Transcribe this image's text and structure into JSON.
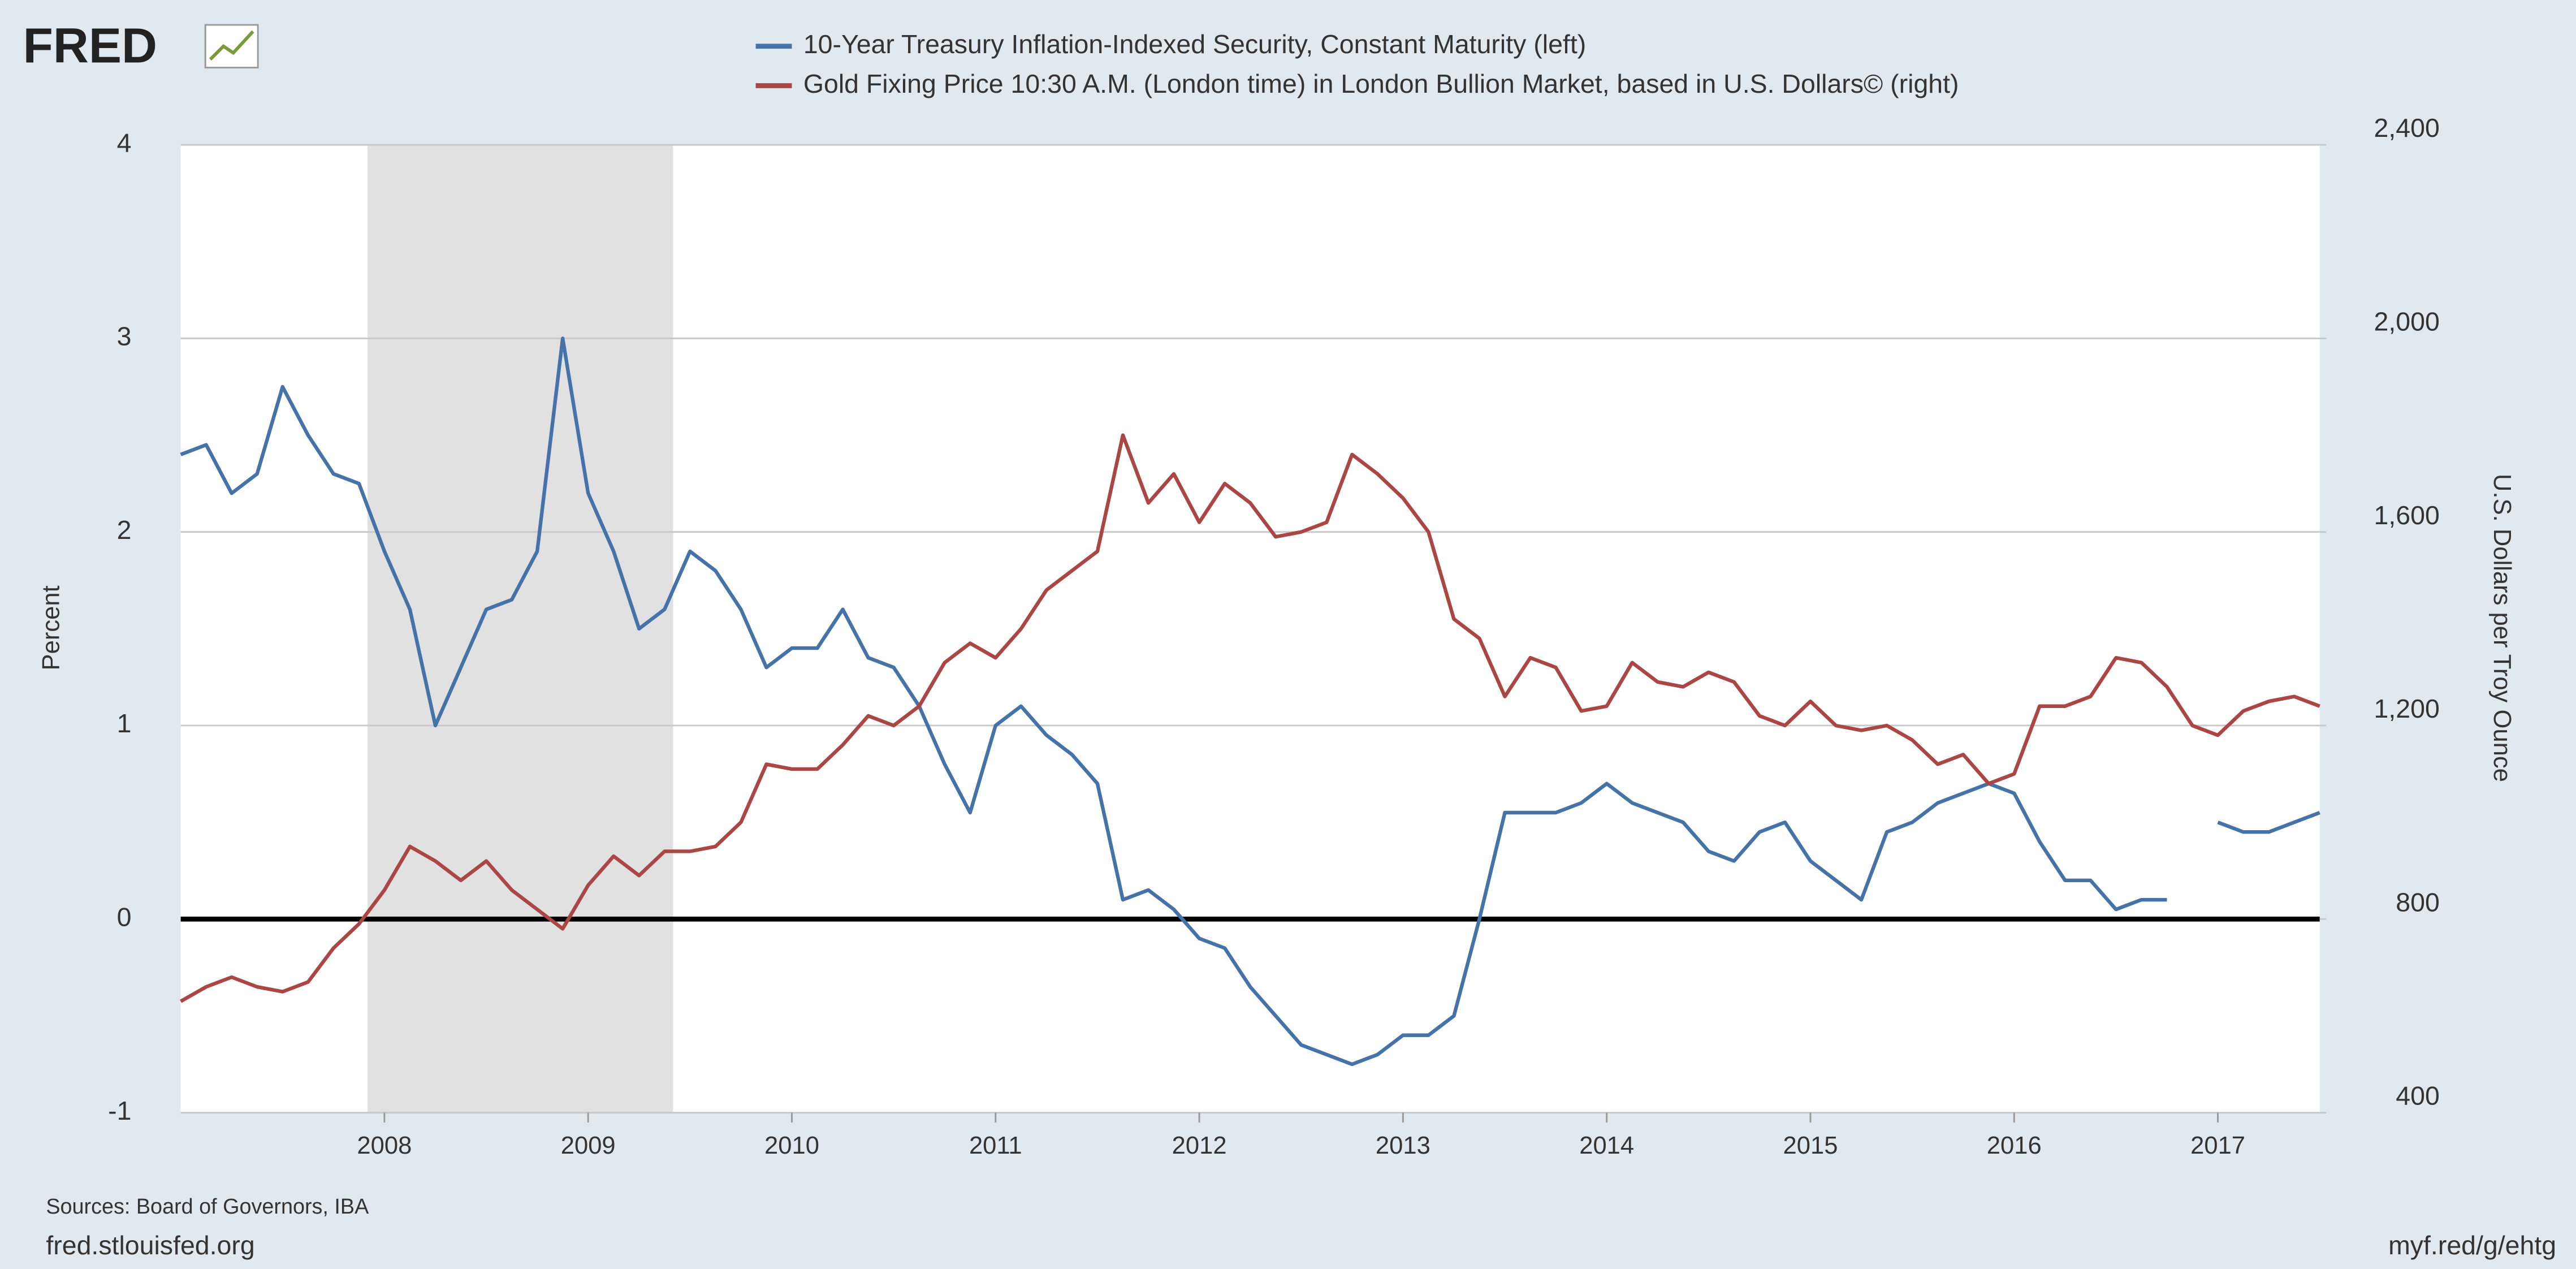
{
  "page": {
    "logo": "FRED",
    "sources": "Sources: Board of Governors, IBA",
    "site": "fred.stlouisfed.org",
    "link": "myf.red/g/ehtg"
  },
  "chart_data": {
    "type": "line",
    "ylabel": "Percent",
    "y2label": "U.S. Dollars per Troy Ounce",
    "x": [
      2007,
      2007.125,
      2007.25,
      2007.375,
      2007.5,
      2007.625,
      2007.75,
      2007.875,
      2008,
      2008.125,
      2008.25,
      2008.375,
      2008.5,
      2008.625,
      2008.75,
      2008.875,
      2009,
      2009.125,
      2009.25,
      2009.375,
      2009.5,
      2009.625,
      2009.75,
      2009.875,
      2010,
      2010.125,
      2010.25,
      2010.375,
      2010.5,
      2010.625,
      2010.75,
      2010.875,
      2011,
      2011.125,
      2011.25,
      2011.375,
      2011.5,
      2011.625,
      2011.75,
      2011.875,
      2012,
      2012.125,
      2012.25,
      2012.375,
      2012.5,
      2012.625,
      2012.75,
      2012.875,
      2013,
      2013.125,
      2013.25,
      2013.375,
      2013.5,
      2013.625,
      2013.75,
      2013.875,
      2014,
      2014.125,
      2014.25,
      2014.375,
      2014.5,
      2014.625,
      2014.75,
      2014.875,
      2015,
      2015.125,
      2015.25,
      2015.375,
      2015.5,
      2015.625,
      2015.75,
      2015.875,
      2016,
      2016.125,
      2016.25,
      2016.375,
      2016.5,
      2016.625,
      2016.75,
      2016.875,
      2017,
      2017.125,
      2017.25,
      2017.375,
      2017.5
    ],
    "series": [
      {
        "name": "10-Year Treasury Inflation-Indexed Security, Constant Maturity (left)",
        "color": "#4572a7",
        "axis": "y",
        "values": [
          2.4,
          2.45,
          2.2,
          2.3,
          2.75,
          2.5,
          2.3,
          2.25,
          1.9,
          1.6,
          1.0,
          1.3,
          1.6,
          1.65,
          1.9,
          3.0,
          2.2,
          1.9,
          1.5,
          1.6,
          1.9,
          1.8,
          1.6,
          1.3,
          1.4,
          1.4,
          1.6,
          1.35,
          1.3,
          1.1,
          0.8,
          0.55,
          1.0,
          1.1,
          0.95,
          0.85,
          0.7,
          0.1,
          0.15,
          0.05,
          -0.1,
          -0.15,
          -0.35,
          -0.5,
          -0.65,
          -0.7,
          -0.75,
          -0.7,
          -0.6,
          -0.6,
          -0.5,
          0.0,
          0.55,
          0.55,
          0.55,
          0.6,
          0.7,
          0.6,
          0.55,
          0.5,
          0.35,
          0.3,
          0.45,
          0.5,
          0.3,
          0.2,
          0.1,
          0.45,
          0.5,
          0.6,
          0.65,
          0.7,
          0.65,
          0.4,
          0.2,
          0.2,
          0.05,
          0.1,
          0.1,
          null,
          0.5,
          0.45,
          0.45,
          0.5,
          0.55
        ]
      },
      {
        "name": "Gold Fixing Price 10:30 A.M. (London time) in London Bullion Market, based in U.S. Dollars© (right)",
        "color": "#aa4643",
        "axis": "y2",
        "values": [
          630,
          660,
          680,
          660,
          650,
          670,
          740,
          790,
          860,
          950,
          920,
          880,
          920,
          860,
          820,
          780,
          870,
          930,
          890,
          940,
          940,
          950,
          1000,
          1120,
          1110,
          1110,
          1160,
          1220,
          1200,
          1240,
          1330,
          1370,
          1340,
          1400,
          1480,
          1520,
          1560,
          1800,
          1660,
          1720,
          1620,
          1700,
          1660,
          1590,
          1600,
          1620,
          1760,
          1720,
          1670,
          1600,
          1420,
          1380,
          1260,
          1340,
          1320,
          1230,
          1240,
          1330,
          1290,
          1280,
          1310,
          1290,
          1220,
          1200,
          1250,
          1200,
          1190,
          1200,
          1170,
          1120,
          1140,
          1080,
          1100,
          1240,
          1240,
          1260,
          1340,
          1330,
          1280,
          1200,
          1180,
          1230,
          1250,
          1260,
          1240
        ]
      }
    ],
    "shaded_range": [
      2007.917,
      2009.417
    ],
    "xlim": [
      2007,
      2017.5
    ],
    "xticks": [
      2008,
      2009,
      2010,
      2011,
      2012,
      2013,
      2014,
      2015,
      2016,
      2017
    ],
    "ylim": [
      -1,
      4
    ],
    "yticks": [
      -1,
      0,
      1,
      2,
      3,
      4
    ],
    "y2lim": [
      400,
      2400
    ],
    "y2ticks": [
      400,
      800,
      {
        "value": 1200,
        "label": "1,200"
      },
      {
        "value": 1600,
        "label": "1,600"
      },
      {
        "value": 2000,
        "label": "2,000"
      },
      {
        "value": 2400,
        "label": "2,400"
      }
    ],
    "grid": true
  }
}
